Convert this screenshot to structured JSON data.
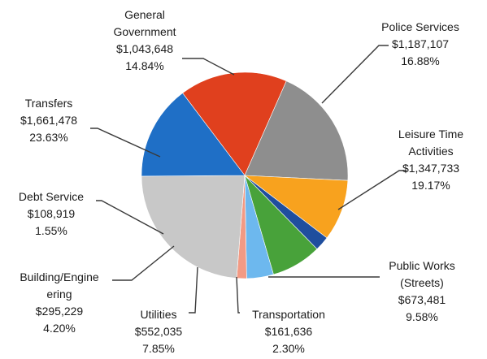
{
  "chart_data": {
    "type": "pie",
    "title": "",
    "start_angle_deg": -37,
    "slices": [
      {
        "name": "Police Services",
        "value_label": "$1,187,107",
        "percent_label": "16.88%",
        "value": 1187107,
        "percent": 16.88,
        "color": "#E0401E"
      },
      {
        "name": "Leisure Time Activities",
        "value_label": "$1,347,733",
        "percent_label": "19.17%",
        "value": 1347733,
        "percent": 19.17,
        "color": "#8E8E8E"
      },
      {
        "name": "Public Works (Streets)",
        "value_label": "$673,481",
        "percent_label": "9.58%",
        "value": 673481,
        "percent": 9.58,
        "color": "#F8A21E"
      },
      {
        "name": "Transportation",
        "value_label": "$161,636",
        "percent_label": "2.30%",
        "value": 161636,
        "percent": 2.3,
        "color": "#1F4E9E"
      },
      {
        "name": "Utilities",
        "value_label": "$552,035",
        "percent_label": "7.85%",
        "value": 552035,
        "percent": 7.85,
        "color": "#48A23A"
      },
      {
        "name": "Building/Engineering",
        "value_label": "$295,229",
        "percent_label": "4.20%",
        "value": 295229,
        "percent": 4.2,
        "color": "#6DB8EE"
      },
      {
        "name": "Debt Service",
        "value_label": "$108,919",
        "percent_label": "1.55%",
        "value": 108919,
        "percent": 1.55,
        "color": "#F29A84"
      },
      {
        "name": "Transfers",
        "value_label": "$1,661,478",
        "percent_label": "23.63%",
        "value": 1661478,
        "percent": 23.63,
        "color": "#C8C8C8"
      },
      {
        "name": "General Government",
        "value_label": "$1,043,648",
        "percent_label": "14.84%",
        "value": 1043648,
        "percent": 14.84,
        "color": "#1F6FC6"
      }
    ],
    "labels": [
      {
        "slice": "Police Services",
        "lines": [
          "Police Services",
          "$1,187,107",
          "16.88%"
        ]
      },
      {
        "slice": "Leisure Time Activities",
        "lines": [
          "Leisure Time",
          "Activities",
          "$1,347,733",
          "19.17%"
        ]
      },
      {
        "slice": "Public Works (Streets)",
        "lines": [
          "Public Works",
          "(Streets)",
          "$673,481",
          "9.58%"
        ]
      },
      {
        "slice": "Transportation",
        "lines": [
          "Transportation",
          "$161,636",
          "2.30%"
        ]
      },
      {
        "slice": "Utilities",
        "lines": [
          "Utilities",
          "$552,035",
          "7.85%"
        ]
      },
      {
        "slice": "Building/Engineering",
        "lines": [
          "Building/Engine",
          "ering",
          "$295,229",
          "4.20%"
        ]
      },
      {
        "slice": "Debt Service",
        "lines": [
          "Debt Service",
          "$108,919",
          "1.55%"
        ]
      },
      {
        "slice": "Transfers",
        "lines": [
          "Transfers",
          "$1,661,478",
          "23.63%"
        ]
      },
      {
        "slice": "General Government",
        "lines": [
          "General",
          "Government",
          "$1,043,648",
          "14.84%"
        ]
      }
    ]
  }
}
